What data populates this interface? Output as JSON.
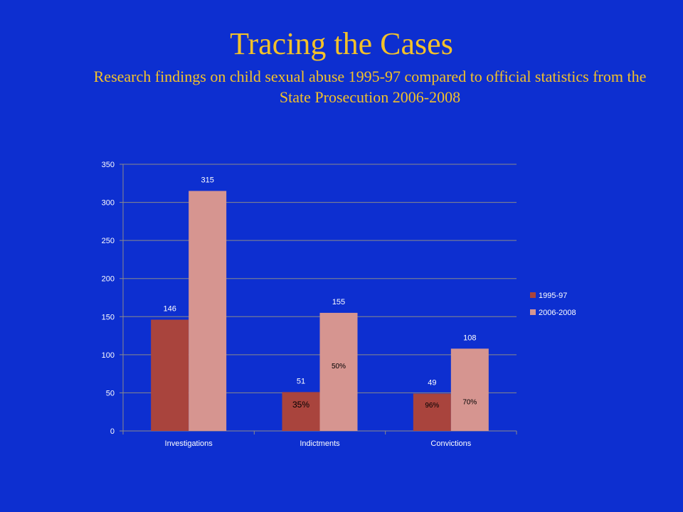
{
  "slide": {
    "title": "Tracing the Cases",
    "subtitle": "Research findings on child sexual abuse 1995-97 compared to official statistics from the State Prosecution 2006-2008"
  },
  "colors": {
    "background": "#0d2fd0",
    "title": "#f3c12a",
    "series_1995": "#a9443d",
    "series_2006": "#d69590",
    "text": "#ffffff",
    "percent_text": "#000000"
  },
  "chart_data": {
    "type": "bar",
    "title": "",
    "xlabel": "",
    "ylabel": "",
    "categories": [
      "Investigations",
      "Indictments",
      "Convictions"
    ],
    "series": [
      {
        "name": "1995-97",
        "values": [
          146,
          51,
          49
        ]
      },
      {
        "name": "2006-2008",
        "values": [
          315,
          155,
          108
        ]
      }
    ],
    "ylim": [
      0,
      350
    ],
    "yticks": [
      0,
      50,
      100,
      150,
      200,
      250,
      300,
      350
    ],
    "grid": true,
    "legend": "right",
    "percent_annotations": [
      {
        "category": "Indictments",
        "series": "1995-97",
        "text": "35%"
      },
      {
        "category": "Convictions",
        "series": "1995-97",
        "text": "96%"
      },
      {
        "category": "Indictments",
        "series": "2006-2008",
        "text": "50%"
      },
      {
        "category": "Convictions",
        "series": "2006-2008",
        "text": "70%"
      }
    ]
  }
}
